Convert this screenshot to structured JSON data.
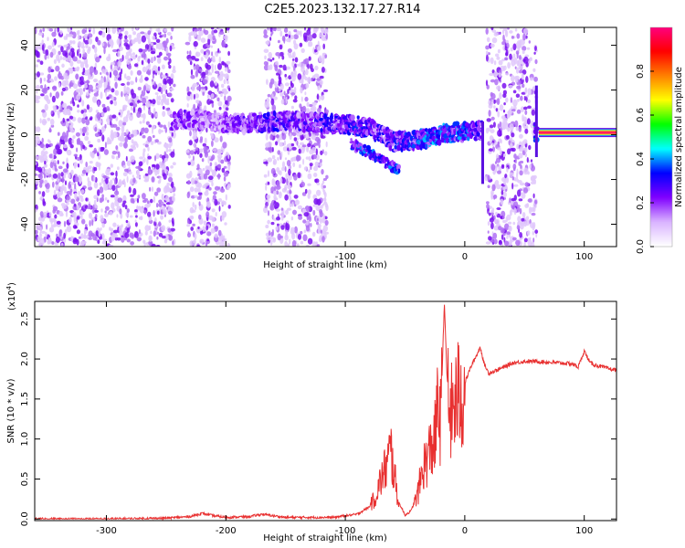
{
  "figure_title": "C2E5.2023.132.17.27.R14",
  "chart_data": [
    {
      "type": "heatmap",
      "title": "C2E5.2023.132.17.27.R14",
      "xlabel": "Height of straight line (km)",
      "ylabel": "Frequency (Hz)",
      "xlim": [
        -360,
        127
      ],
      "ylim": [
        -50,
        48
      ],
      "xticks": [
        -300,
        -200,
        -100,
        0,
        100
      ],
      "yticks": [
        -40,
        -20,
        0,
        20,
        40
      ],
      "grid": false,
      "colorbar": {
        "label": "Normalized spectral amplitude",
        "range": [
          0.0,
          1.0
        ],
        "ticks": [
          0.0,
          0.2,
          0.4,
          0.6,
          0.8
        ],
        "colors": [
          "#ffffff",
          "#d9b3ff",
          "#8000ff",
          "#0000ff",
          "#00ffff",
          "#00ff00",
          "#ffff00",
          "#ff8000",
          "#ff0000",
          "#ff0080"
        ]
      },
      "noise_regions": [
        {
          "x0": -360,
          "x1": -243
        },
        {
          "x0": -232,
          "x1": -197
        },
        {
          "x0": -167,
          "x1": -115
        },
        {
          "x0": 18,
          "x1": 60
        }
      ],
      "signal_trace": [
        {
          "x": -245,
          "f": 6,
          "amp": 0.35
        },
        {
          "x": -235,
          "f": 7,
          "amp": 0.4
        },
        {
          "x": -210,
          "f": 6,
          "amp": 0.3
        },
        {
          "x": -195,
          "f": 5,
          "amp": 0.4
        },
        {
          "x": -180,
          "f": 5,
          "amp": 0.45
        },
        {
          "x": -165,
          "f": 6,
          "amp": 0.5
        },
        {
          "x": -150,
          "f": 6,
          "amp": 0.5
        },
        {
          "x": -135,
          "f": 6,
          "amp": 0.45
        },
        {
          "x": -120,
          "f": 5,
          "amp": 0.5
        },
        {
          "x": -105,
          "f": 5,
          "amp": 0.5
        },
        {
          "x": -90,
          "f": 4,
          "amp": 0.55
        },
        {
          "x": -75,
          "f": 2,
          "amp": 0.5
        },
        {
          "x": -60,
          "f": -3,
          "amp": 0.55
        },
        {
          "x": -45,
          "f": -3,
          "amp": 0.6
        },
        {
          "x": -30,
          "f": -1,
          "amp": 0.65
        },
        {
          "x": -15,
          "f": 1,
          "amp": 0.7
        },
        {
          "x": 0,
          "f": 1,
          "amp": 0.65
        },
        {
          "x": 12,
          "f": 2,
          "amp": 0.5
        },
        {
          "x": 62,
          "f": 1,
          "amp": 0.9
        },
        {
          "x": 127,
          "f": 0,
          "amp": 0.95
        }
      ],
      "lower_branch": [
        {
          "x": -95,
          "f": -4
        },
        {
          "x": -80,
          "f": -8
        },
        {
          "x": -65,
          "f": -13
        },
        {
          "x": -55,
          "f": -16
        }
      ]
    },
    {
      "type": "line",
      "xlabel": "Height of straight line (km)",
      "ylabel": "SNR (10 * v/v)",
      "y_multiplier": "(x10",
      "y_multiplier_exp": "4",
      "y_multiplier_close": ")",
      "xlim": [
        -360,
        127
      ],
      "ylim": [
        -0.02,
        2.72
      ],
      "xticks": [
        -300,
        -200,
        -100,
        0,
        100
      ],
      "yticks": [
        0.0,
        0.5,
        1.0,
        1.5,
        2.0,
        2.5
      ],
      "grid": false,
      "series": [
        {
          "color": "#e83030",
          "x": [
            -360,
            -300,
            -250,
            -230,
            -220,
            -210,
            -200,
            -180,
            -170,
            -160,
            -150,
            -130,
            -110,
            -100,
            -90,
            -80,
            -75,
            -70,
            -65,
            -62,
            -58,
            -55,
            -50,
            -45,
            -40,
            -35,
            -30,
            -25,
            -22,
            -20,
            -18,
            -17,
            -15,
            -12,
            -10,
            -5,
            0,
            5,
            10,
            13,
            16,
            20,
            25,
            30,
            40,
            50,
            60,
            70,
            80,
            90,
            95,
            100,
            105,
            110,
            120,
            127
          ],
          "y": [
            0.0,
            0.0,
            0.01,
            0.03,
            0.07,
            0.04,
            0.02,
            0.03,
            0.06,
            0.04,
            0.02,
            0.02,
            0.02,
            0.04,
            0.06,
            0.15,
            0.3,
            0.55,
            0.75,
            0.95,
            0.5,
            0.2,
            0.05,
            0.1,
            0.3,
            0.7,
            0.9,
            1.1,
            1.6,
            1.3,
            2.3,
            2.7,
            1.8,
            1.4,
            1.5,
            1.7,
            1.7,
            1.9,
            2.05,
            2.15,
            1.95,
            1.82,
            1.85,
            1.88,
            1.95,
            1.97,
            1.97,
            1.96,
            1.95,
            1.94,
            1.9,
            2.1,
            1.95,
            1.92,
            1.88,
            1.86
          ]
        }
      ]
    }
  ]
}
